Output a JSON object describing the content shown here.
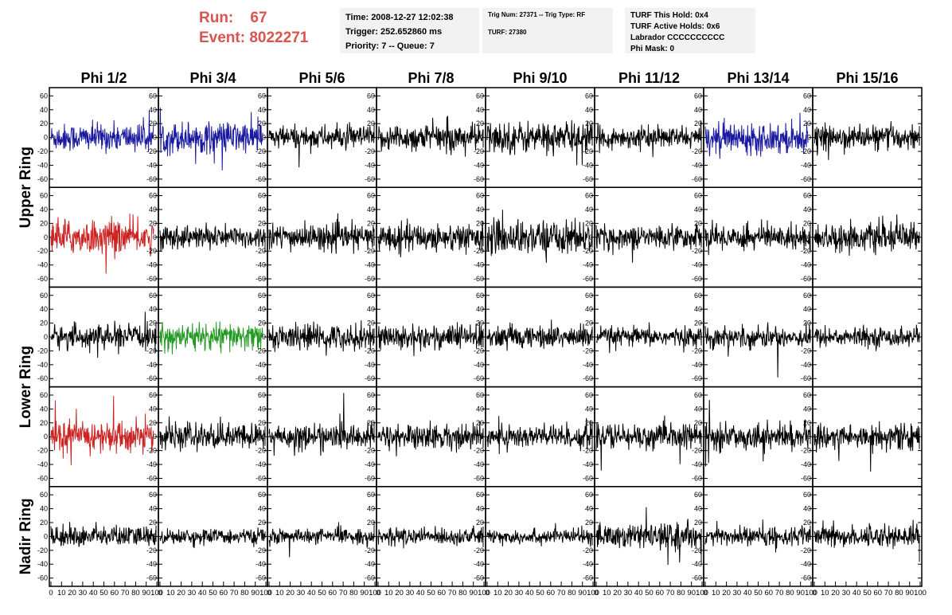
{
  "header": {
    "run_label": "Run:",
    "run_value": "67",
    "event_label": "Event:",
    "event_value": "8022271",
    "time": "Time: 2008-12-27 12:02:38",
    "trigger": "Trigger: 252.652860 ms",
    "priority": "Priority: 7 -- Queue: 7",
    "trig_num": "Trig Num: 27371 -- Trig Type: RF",
    "turf": "TURF: 27380",
    "turf_this_hold": "TURF This Hold: 0x4",
    "turf_active_holds": "TURF Active Holds: 0x6",
    "labrador": "Labrador CCCCCCCCCC",
    "phi_mask": "Phi Mask: 0"
  },
  "chart_data": {
    "type": "line",
    "columns": [
      "Phi 1/2",
      "Phi 3/4",
      "Phi 5/6",
      "Phi 7/8",
      "Phi 9/10",
      "Phi 11/12",
      "Phi 13/14",
      "Phi 15/16"
    ],
    "rings": [
      "Upper Ring",
      "Lower Ring",
      "Nadir Ring"
    ],
    "rows_per_ring": [
      2,
      2,
      1
    ],
    "ylim": [
      -65,
      65
    ],
    "yticks": [
      -60,
      -40,
      -20,
      0,
      20,
      40,
      60
    ],
    "xlim": [
      0,
      100
    ],
    "xticks": [
      0,
      10,
      20,
      30,
      40,
      50,
      60,
      70,
      80,
      90,
      100
    ],
    "x_tick_labels": [
      "0",
      "10",
      "20",
      "30",
      "40",
      "50",
      "60",
      "70",
      "80",
      "90",
      "100"
    ],
    "x_tick_labels_last_column": [
      "0",
      "10",
      "20",
      "30",
      "40",
      "50",
      "60",
      "70",
      "80",
      "90",
      "100"
    ],
    "colors": {
      "default": "#000000",
      "blue": "#1a1aa0",
      "red": "#cc2222",
      "green": "#229922"
    },
    "panel_colors": [
      [
        "blue",
        "blue",
        "default",
        "default",
        "default",
        "default",
        "blue",
        "default"
      ],
      [
        "red",
        "default",
        "default",
        "default",
        "default",
        "default",
        "default",
        "default"
      ],
      [
        "default",
        "green",
        "default",
        "default",
        "default",
        "default",
        "default",
        "default"
      ],
      [
        "red",
        "default",
        "default",
        "default",
        "default",
        "default",
        "default",
        "default"
      ],
      [
        "default",
        "default",
        "default",
        "default",
        "default",
        "default",
        "default",
        "default"
      ]
    ],
    "panel_amplitude": [
      [
        13,
        15,
        11,
        13,
        15,
        10,
        14,
        11
      ],
      [
        16,
        11,
        12,
        13,
        16,
        11,
        12,
        13
      ],
      [
        11,
        13,
        12,
        12,
        11,
        9,
        10,
        9
      ],
      [
        15,
        12,
        12,
        12,
        12,
        12,
        12,
        12
      ],
      [
        10,
        7,
        7,
        8,
        7,
        12,
        9,
        10
      ]
    ],
    "samples_per_trace": 260
  }
}
